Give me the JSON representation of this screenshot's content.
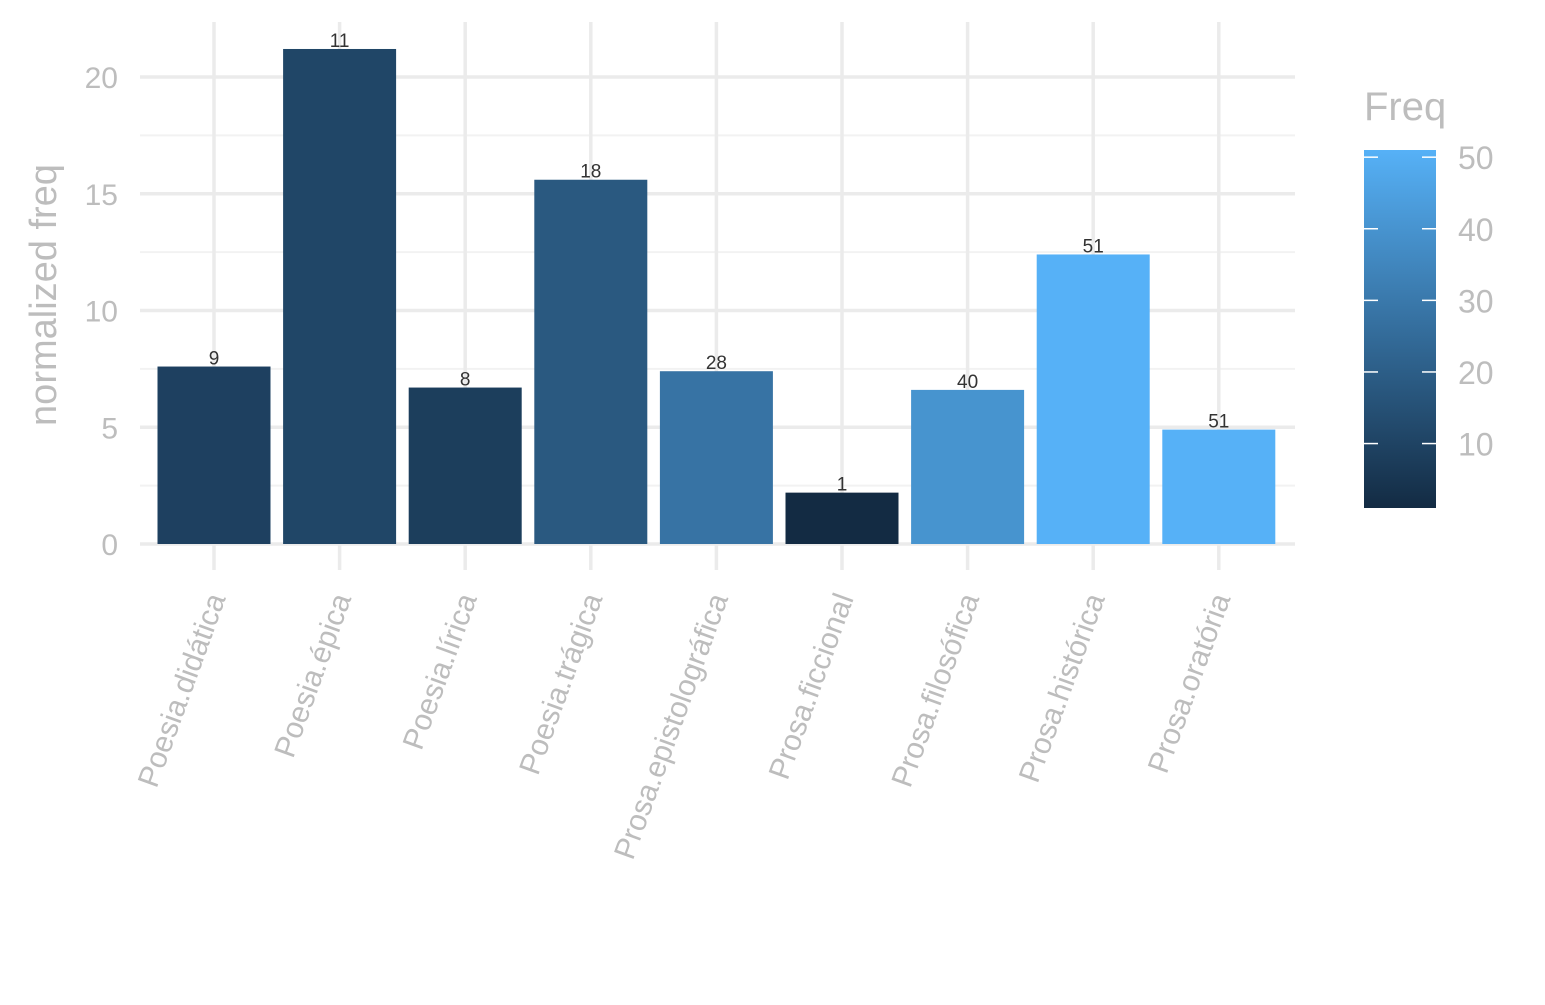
{
  "chart_data": {
    "type": "bar",
    "xlabel": "",
    "ylabel": "normalized freq",
    "ylim": [
      0,
      22
    ],
    "y_ticks": [
      0,
      5,
      10,
      15,
      20
    ],
    "grid": true,
    "legend_placement": "right",
    "categories": [
      "Poesia.didática",
      "Poesia.épica",
      "Poesia.lírica",
      "Poesia.trágica",
      "Prosa.epistolográfica",
      "Prosa.ficcional",
      "Prosa.filosófica",
      "Prosa.histórica",
      "Prosa.oratória"
    ],
    "values": [
      7.6,
      21.2,
      6.7,
      15.6,
      7.4,
      2.2,
      6.6,
      12.4,
      4.9
    ],
    "fill_values": [
      9,
      11,
      8,
      18,
      28,
      1,
      40,
      51,
      51
    ],
    "bar_labels": [
      "9",
      "11",
      "8",
      "18",
      "28",
      "1",
      "40",
      "51",
      "51"
    ],
    "legend": {
      "title": "Freq",
      "ticks": [
        10,
        20,
        30,
        40,
        50
      ],
      "range": [
        1,
        51
      ],
      "color_low": "#132B43",
      "color_high": "#56B1F7"
    }
  }
}
